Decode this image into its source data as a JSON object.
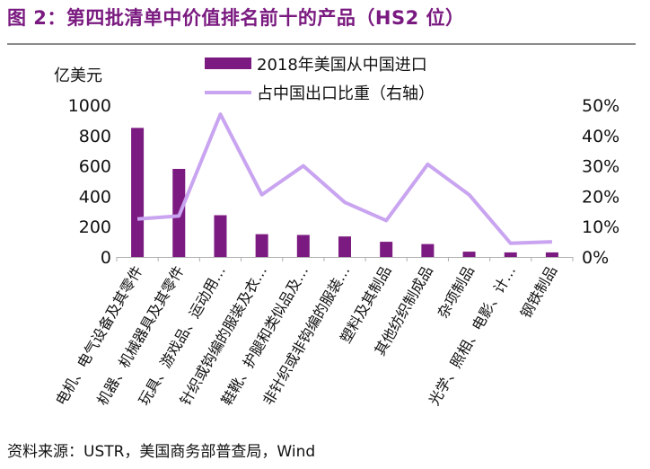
{
  "figure": {
    "title": "图 2：第四批清单中价值排名前十的产品（HS2 位）",
    "source": "资料来源：USTR，美国商务部普查局，Wind"
  },
  "chart_data": {
    "type": "bar",
    "categories": [
      "电机、电气设备及其零件",
      "机器、机械器具及其零件",
      "玩具、游戏品、运动用…",
      "针织或钩编的服装及衣…",
      "鞋靴、护腿和类似品及…",
      "非针织或非钩编的服装…",
      "塑料及其制品",
      "其他纺织制成品",
      "杂项制品",
      "光学、照相、电影、计…",
      "钢铁制品"
    ],
    "left_axis_unit": "亿美元",
    "left_axis": {
      "ylim": [
        0,
        1000
      ],
      "ticks": [
        "1000",
        "800",
        "600",
        "400",
        "200",
        "0"
      ]
    },
    "right_axis": {
      "ylim": [
        0,
        50
      ],
      "ticks": [
        "50%",
        "40%",
        "30%",
        "20%",
        "10%",
        "0%"
      ]
    },
    "legend_position": "top",
    "series": [
      {
        "name": "2018年美国从中国进口",
        "type": "bar",
        "axis": "left",
        "color": "#7b1a80",
        "values": [
          850,
          580,
          275,
          150,
          145,
          135,
          100,
          85,
          35,
          30,
          30
        ]
      },
      {
        "name": "占中国出口比重（右轴）",
        "type": "line",
        "axis": "right",
        "color": "#c9a4f0",
        "values": [
          12.5,
          13.5,
          47,
          20.5,
          30,
          18,
          12,
          30.5,
          20.5,
          4.5,
          5
        ]
      }
    ]
  }
}
